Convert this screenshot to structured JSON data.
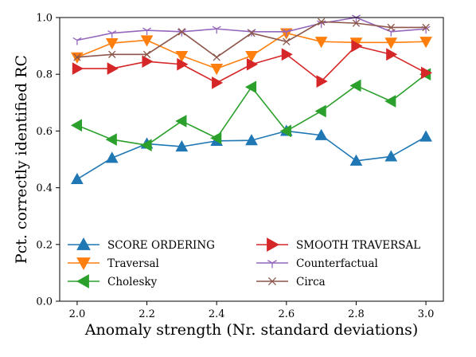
{
  "chart_data": {
    "type": "line",
    "xlabel": "Anomaly strength (Nr. standard deviations)",
    "ylabel": "Pct. correctly identified RC",
    "xlim": [
      1.95,
      3.05
    ],
    "ylim": [
      0.0,
      1.0
    ],
    "xticks": [
      "2.0",
      "2.2",
      "2.4",
      "2.6",
      "2.8",
      "3.0"
    ],
    "yticks": [
      "0.0",
      "0.2",
      "0.4",
      "0.6",
      "0.8",
      "1.0"
    ],
    "grid": false,
    "legend_position": "lower-center",
    "x": [
      2.0,
      2.1,
      2.2,
      2.3,
      2.4,
      2.5,
      2.6,
      2.7,
      2.8,
      2.9,
      3.0
    ],
    "series": [
      {
        "name": "SCORE ORDERING",
        "color": "#1f77b4",
        "marker": "triangle-up",
        "values": [
          0.43,
          0.505,
          0.555,
          0.545,
          0.565,
          0.567,
          0.6,
          0.585,
          0.495,
          0.51,
          0.58
        ]
      },
      {
        "name": "Traversal",
        "color": "#ff7f0e",
        "marker": "triangle-down",
        "values": [
          0.86,
          0.91,
          0.92,
          0.865,
          0.82,
          0.865,
          0.945,
          0.915,
          0.912,
          0.912,
          0.915
        ]
      },
      {
        "name": "Cholesky",
        "color": "#2ca02c",
        "marker": "triangle-left",
        "values": [
          0.62,
          0.57,
          0.55,
          0.635,
          0.575,
          0.755,
          0.6,
          0.67,
          0.76,
          0.705,
          0.8
        ]
      },
      {
        "name": "SMOOTH TRAVERSAL",
        "color": "#d62728",
        "marker": "triangle-right",
        "values": [
          0.82,
          0.82,
          0.845,
          0.835,
          0.77,
          0.835,
          0.87,
          0.775,
          0.9,
          0.87,
          0.805
        ]
      },
      {
        "name": "Counterfactual",
        "color": "#9467bd",
        "marker": "tri-down",
        "values": [
          0.92,
          0.945,
          0.955,
          0.95,
          0.96,
          0.95,
          0.95,
          0.98,
          1.0,
          0.95,
          0.96
        ]
      },
      {
        "name": "Circa",
        "color": "#8c564b",
        "marker": "tri-x",
        "values": [
          0.86,
          0.87,
          0.87,
          0.95,
          0.86,
          0.945,
          0.915,
          0.985,
          0.98,
          0.965,
          0.965
        ]
      }
    ]
  }
}
